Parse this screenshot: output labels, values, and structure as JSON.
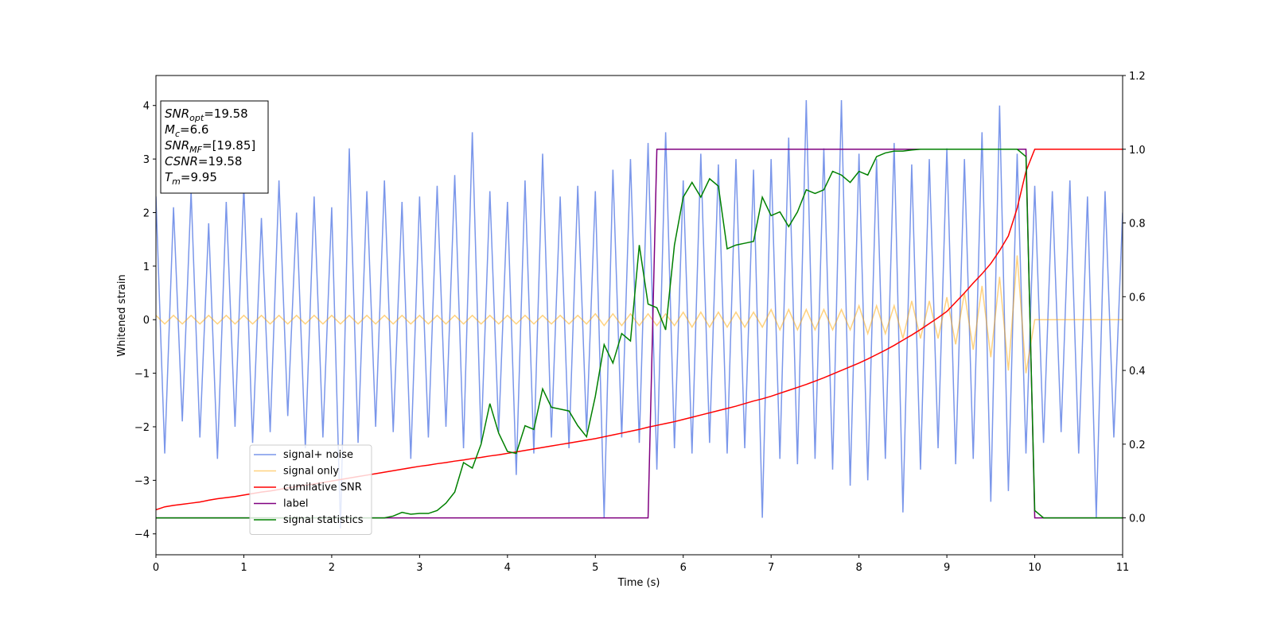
{
  "chart_data": {
    "type": "line",
    "xlabel": "Time (s)",
    "ylabel": "Whitened strain",
    "annotations": [
      {
        "symbol": "SNR",
        "subscript": "opt",
        "text": "=19.58"
      },
      {
        "symbol": "M",
        "subscript": "c",
        "text": "=6.6"
      },
      {
        "symbol": "SNR",
        "subscript": "MF",
        "text": "=[19.85]"
      },
      {
        "symbol": "CSNR",
        "subscript": "",
        "text": "=19.58"
      },
      {
        "symbol": "T",
        "subscript": "m",
        "text": "=9.95"
      }
    ],
    "legend_loc": "lower left",
    "xlim": [
      0,
      11
    ],
    "xticks": [
      0,
      1,
      2,
      3,
      4,
      5,
      6,
      7,
      8,
      9,
      10,
      11
    ],
    "ylim": [
      -4.39,
      4.56
    ],
    "yticks": [
      {
        "value": -4,
        "label": "−4"
      },
      {
        "value": -3,
        "label": "−3"
      },
      {
        "value": -2,
        "label": "−2"
      },
      {
        "value": -1,
        "label": "−1"
      },
      0,
      1,
      2,
      3,
      4
    ],
    "y2lim": [
      -0.1,
      1.2
    ],
    "y2ticks": [
      {
        "value": 0,
        "label": "0.0"
      },
      0.2,
      0.4,
      0.6,
      0.8,
      {
        "value": 1,
        "label": "1.0"
      },
      1.2
    ],
    "x": [
      0,
      0.1,
      0.2,
      0.3,
      0.4,
      0.5,
      0.6,
      0.7,
      0.8,
      0.9,
      1,
      1.1,
      1.2,
      1.3,
      1.4,
      1.5,
      1.6,
      1.7,
      1.8,
      1.9,
      2,
      2.1,
      2.2,
      2.3,
      2.4,
      2.5,
      2.6,
      2.7,
      2.8,
      2.9,
      3,
      3.1,
      3.2,
      3.3,
      3.4,
      3.5,
      3.6,
      3.7,
      3.8,
      3.9,
      4,
      4.1,
      4.2,
      4.3,
      4.4,
      4.5,
      4.6,
      4.7,
      4.8,
      4.9,
      5,
      5.1,
      5.2,
      5.3,
      5.4,
      5.5,
      5.6,
      5.7,
      5.8,
      5.9,
      6,
      6.1,
      6.2,
      6.3,
      6.4,
      6.5,
      6.6,
      6.7,
      6.8,
      6.9,
      7,
      7.1,
      7.2,
      7.3,
      7.4,
      7.5,
      7.6,
      7.7,
      7.8,
      7.9,
      8,
      8.1,
      8.2,
      8.3,
      8.4,
      8.5,
      8.6,
      8.7,
      8.8,
      8.9,
      9,
      9.1,
      9.2,
      9.3,
      9.4,
      9.5,
      9.6,
      9.7,
      9.8,
      9.9,
      10,
      10.1,
      10.2,
      10.3,
      10.4,
      10.5,
      10.6,
      10.7,
      10.8,
      10.9,
      11
    ],
    "series": [
      {
        "name": "signal+ noise",
        "color": "#4169e1",
        "alpha": 0.7,
        "values": [
          2.3,
          -2.5,
          2.1,
          -1.9,
          2.4,
          -2.2,
          1.8,
          -2.6,
          2.2,
          -2.0,
          2.5,
          -2.3,
          1.9,
          -2.1,
          2.6,
          -1.8,
          2.0,
          -2.4,
          2.3,
          -2.2,
          2.1,
          -3.9,
          3.2,
          -2.3,
          2.4,
          -2.0,
          2.6,
          -2.1,
          2.2,
          -2.6,
          2.3,
          -2.2,
          2.5,
          -2.0,
          2.7,
          -2.4,
          3.5,
          -2.3,
          2.4,
          -2.1,
          2.2,
          -2.9,
          2.6,
          -2.5,
          3.1,
          -2.2,
          2.3,
          -2.4,
          2.5,
          -2.1,
          2.4,
          -3.7,
          2.8,
          -2.2,
          3.0,
          -2.3,
          3.3,
          -2.8,
          3.5,
          -2.4,
          2.6,
          -2.5,
          3.1,
          -2.3,
          2.9,
          -2.5,
          3.0,
          -2.4,
          2.8,
          -3.7,
          3.0,
          -2.6,
          3.4,
          -2.7,
          4.1,
          -2.6,
          3.2,
          -2.8,
          4.1,
          -3.1,
          3.1,
          -3.0,
          3.0,
          -2.6,
          3.3,
          -3.6,
          2.9,
          -2.8,
          3.0,
          -2.4,
          3.2,
          -2.7,
          3.0,
          -2.6,
          3.5,
          -3.4,
          4.0,
          -3.2,
          3.1,
          -2.5,
          2.5,
          -2.3,
          2.4,
          -2.1,
          2.6,
          -2.5,
          2.3,
          -3.7,
          2.4,
          -2.2,
          2.0
        ]
      },
      {
        "name": "signal only",
        "color": "#ffa500",
        "alpha": 0.5,
        "values": [
          0.08,
          -0.08,
          0.08,
          -0.08,
          0.08,
          -0.08,
          0.08,
          -0.08,
          0.08,
          -0.08,
          0.08,
          -0.08,
          0.08,
          -0.08,
          0.08,
          -0.08,
          0.08,
          -0.08,
          0.08,
          -0.08,
          0.08,
          -0.08,
          0.08,
          -0.08,
          0.08,
          -0.08,
          0.08,
          -0.08,
          0.08,
          -0.08,
          0.08,
          -0.08,
          0.08,
          -0.08,
          0.08,
          -0.08,
          0.08,
          -0.08,
          0.08,
          -0.08,
          0.08,
          -0.08,
          0.08,
          -0.08,
          0.08,
          -0.08,
          0.08,
          -0.08,
          0.08,
          -0.08,
          0.11,
          -0.11,
          0.11,
          -0.11,
          0.11,
          -0.11,
          0.11,
          -0.11,
          0.11,
          -0.11,
          0.14,
          -0.14,
          0.14,
          -0.14,
          0.14,
          -0.14,
          0.14,
          -0.14,
          0.14,
          -0.14,
          0.19,
          -0.19,
          0.19,
          -0.19,
          0.19,
          -0.19,
          0.19,
          -0.19,
          0.19,
          -0.19,
          0.26,
          -0.26,
          0.26,
          -0.26,
          0.26,
          -0.35,
          0.35,
          -0.35,
          0.35,
          -0.35,
          0.42,
          -0.46,
          0.5,
          -0.56,
          0.63,
          -0.7,
          0.8,
          -0.95,
          1.2,
          -1.0,
          0,
          0,
          0,
          0,
          0,
          0,
          0,
          0,
          0,
          0,
          0
        ]
      },
      {
        "name": "cumilative SNR",
        "color": "#ff0000",
        "axis": "y2",
        "values": [
          0.022,
          0.03,
          0.034,
          0.037,
          0.04,
          0.043,
          0.048,
          0.052,
          0.055,
          0.058,
          0.062,
          0.066,
          0.07,
          0.073,
          0.077,
          0.081,
          0.085,
          0.089,
          0.092,
          0.096,
          0.1,
          0.104,
          0.108,
          0.112,
          0.116,
          0.12,
          0.124,
          0.128,
          0.132,
          0.136,
          0.14,
          0.143,
          0.147,
          0.15,
          0.154,
          0.157,
          0.161,
          0.164,
          0.168,
          0.171,
          0.175,
          0.179,
          0.183,
          0.187,
          0.191,
          0.195,
          0.199,
          0.203,
          0.207,
          0.211,
          0.215,
          0.22,
          0.225,
          0.23,
          0.235,
          0.24,
          0.246,
          0.251,
          0.256,
          0.261,
          0.267,
          0.273,
          0.279,
          0.285,
          0.291,
          0.297,
          0.303,
          0.31,
          0.317,
          0.323,
          0.33,
          0.338,
          0.346,
          0.354,
          0.362,
          0.371,
          0.38,
          0.39,
          0.4,
          0.41,
          0.42,
          0.431,
          0.443,
          0.455,
          0.468,
          0.482,
          0.496,
          0.511,
          0.527,
          0.543,
          0.56,
          0.585,
          0.61,
          0.637,
          0.662,
          0.69,
          0.725,
          0.765,
          0.84,
          0.94,
          1.0,
          1.0,
          1.0,
          1.0,
          1.0,
          1.0,
          1.0,
          1.0,
          1.0,
          1.0,
          1.0
        ]
      },
      {
        "name": "label",
        "color": "#800080",
        "axis": "y2",
        "values": [
          0,
          0,
          0,
          0,
          0,
          0,
          0,
          0,
          0,
          0,
          0,
          0,
          0,
          0,
          0,
          0,
          0,
          0,
          0,
          0,
          0,
          0,
          0,
          0,
          0,
          0,
          0,
          0,
          0,
          0,
          0,
          0,
          0,
          0,
          0,
          0,
          0,
          0,
          0,
          0,
          0,
          0,
          0,
          0,
          0,
          0,
          0,
          0,
          0,
          0,
          0,
          0,
          0,
          0,
          0,
          0,
          0,
          1,
          1,
          1,
          1,
          1,
          1,
          1,
          1,
          1,
          1,
          1,
          1,
          1,
          1,
          1,
          1,
          1,
          1,
          1,
          1,
          1,
          1,
          1,
          1,
          1,
          1,
          1,
          1,
          1,
          1,
          1,
          1,
          1,
          1,
          1,
          1,
          1,
          1,
          1,
          1,
          1,
          1,
          1,
          0,
          0,
          0,
          0,
          0,
          0,
          0,
          0,
          0,
          0,
          0
        ]
      },
      {
        "name": "signal statistics",
        "color": "#008000",
        "axis": "y2",
        "values": [
          0,
          0,
          0,
          0,
          0,
          0,
          0,
          0,
          0,
          0,
          0,
          0,
          0,
          0,
          0,
          0,
          0,
          0,
          0,
          0,
          0,
          0,
          0,
          0,
          0,
          0,
          0,
          0.005,
          0.015,
          0.01,
          0.012,
          0.012,
          0.02,
          0.04,
          0.07,
          0.15,
          0.135,
          0.2,
          0.31,
          0.23,
          0.18,
          0.175,
          0.25,
          0.24,
          0.35,
          0.3,
          0.295,
          0.29,
          0.25,
          0.22,
          0.33,
          0.47,
          0.42,
          0.5,
          0.48,
          0.74,
          0.58,
          0.57,
          0.51,
          0.74,
          0.87,
          0.91,
          0.87,
          0.92,
          0.9,
          0.73,
          0.74,
          0.745,
          0.75,
          0.87,
          0.82,
          0.83,
          0.79,
          0.83,
          0.89,
          0.88,
          0.89,
          0.94,
          0.93,
          0.91,
          0.94,
          0.93,
          0.98,
          0.99,
          0.995,
          0.995,
          0.998,
          1,
          1,
          1,
          1,
          1,
          1,
          1,
          1,
          1,
          1,
          1,
          1,
          0.98,
          0.02,
          0,
          0,
          0,
          0,
          0,
          0,
          0,
          0,
          0,
          0
        ]
      }
    ]
  }
}
